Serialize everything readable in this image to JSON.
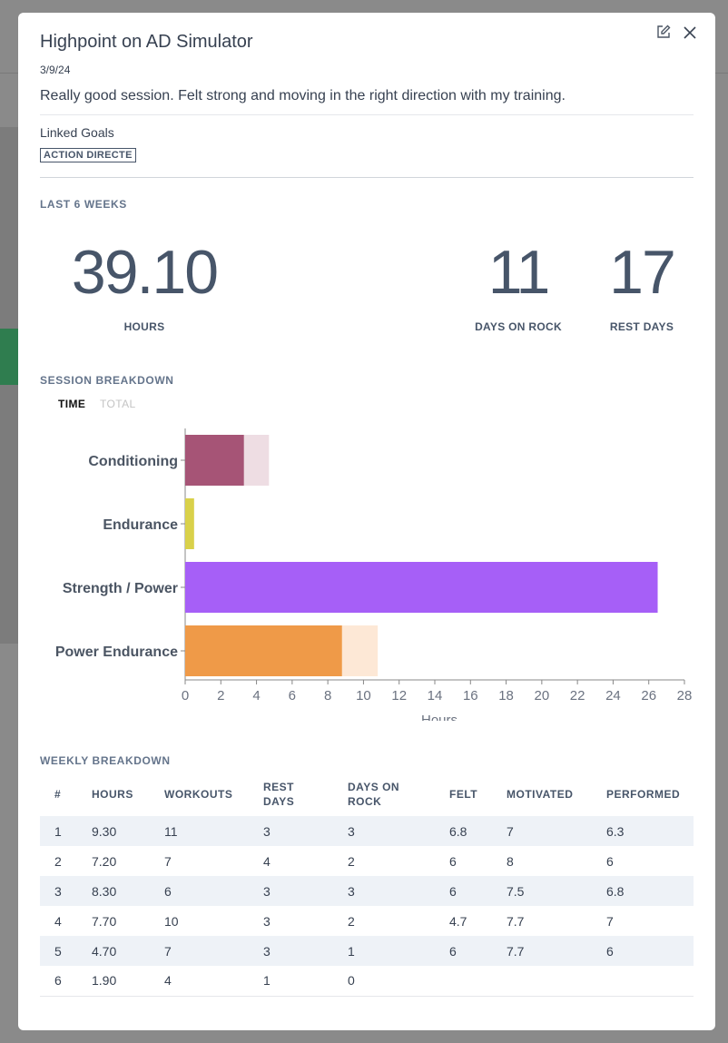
{
  "session": {
    "title": "Highpoint on AD Simulator",
    "date": "3/9/24",
    "note": "Really good session. Felt strong and moving in the right direction with my training.",
    "linked_goals_label": "Linked Goals",
    "goal_tag": "ACTION DIRECTE"
  },
  "icons": {
    "edit": "edit-icon",
    "close": "close-icon"
  },
  "summary": {
    "section_title": "LAST 6 WEEKS",
    "hours_value": "39.10",
    "hours_label": "HOURS",
    "days_on_rock_value": "11",
    "days_on_rock_label": "DAYS ON ROCK",
    "rest_days_value": "17",
    "rest_days_label": "REST DAYS"
  },
  "breakdown": {
    "section_title": "SESSION BREAKDOWN",
    "toggle_time": "TIME",
    "toggle_total": "TOTAL"
  },
  "chart_data": {
    "type": "bar",
    "orientation": "horizontal",
    "stacked": true,
    "categories": [
      "Conditioning",
      "Endurance",
      "Strength / Power",
      "Power Endurance"
    ],
    "series": [
      {
        "values": [
          3.3,
          0.5,
          26.5,
          8.8
        ],
        "colors": [
          "#a65476",
          "#d9d14a",
          "#a65ff7",
          "#ef9a48"
        ]
      },
      {
        "values": [
          1.4,
          0,
          0,
          2.0
        ],
        "colors": [
          "#eedde3",
          "#f5f3d0",
          "#ecdcfd",
          "#fde8d6"
        ]
      }
    ],
    "xlabel": "Hours",
    "xlim": [
      0,
      28
    ],
    "xticks": [
      0,
      2,
      4,
      6,
      8,
      10,
      12,
      14,
      16,
      18,
      20,
      22,
      24,
      26,
      28
    ],
    "grid": false
  },
  "weekly": {
    "section_title": "WEEKLY BREAKDOWN",
    "columns": [
      "#",
      "HOURS",
      "WORKOUTS",
      "REST DAYS",
      "DAYS ON ROCK",
      "FELT",
      "MOTIVATED",
      "PERFORMED"
    ],
    "rows": [
      [
        "1",
        "9.30",
        "11",
        "3",
        "3",
        "6.8",
        "7",
        "6.3"
      ],
      [
        "2",
        "7.20",
        "7",
        "4",
        "2",
        "6",
        "8",
        "6"
      ],
      [
        "3",
        "8.30",
        "6",
        "3",
        "3",
        "6",
        "7.5",
        "6.8"
      ],
      [
        "4",
        "7.70",
        "10",
        "3",
        "2",
        "4.7",
        "7.7",
        "7"
      ],
      [
        "5",
        "4.70",
        "7",
        "3",
        "1",
        "6",
        "7.7",
        "6"
      ],
      [
        "6",
        "1.90",
        "4",
        "1",
        "0",
        "",
        "",
        ""
      ]
    ]
  },
  "colors": {
    "accent": "#64748b",
    "text": "#374151",
    "row_stripe": "#eef2f7"
  }
}
